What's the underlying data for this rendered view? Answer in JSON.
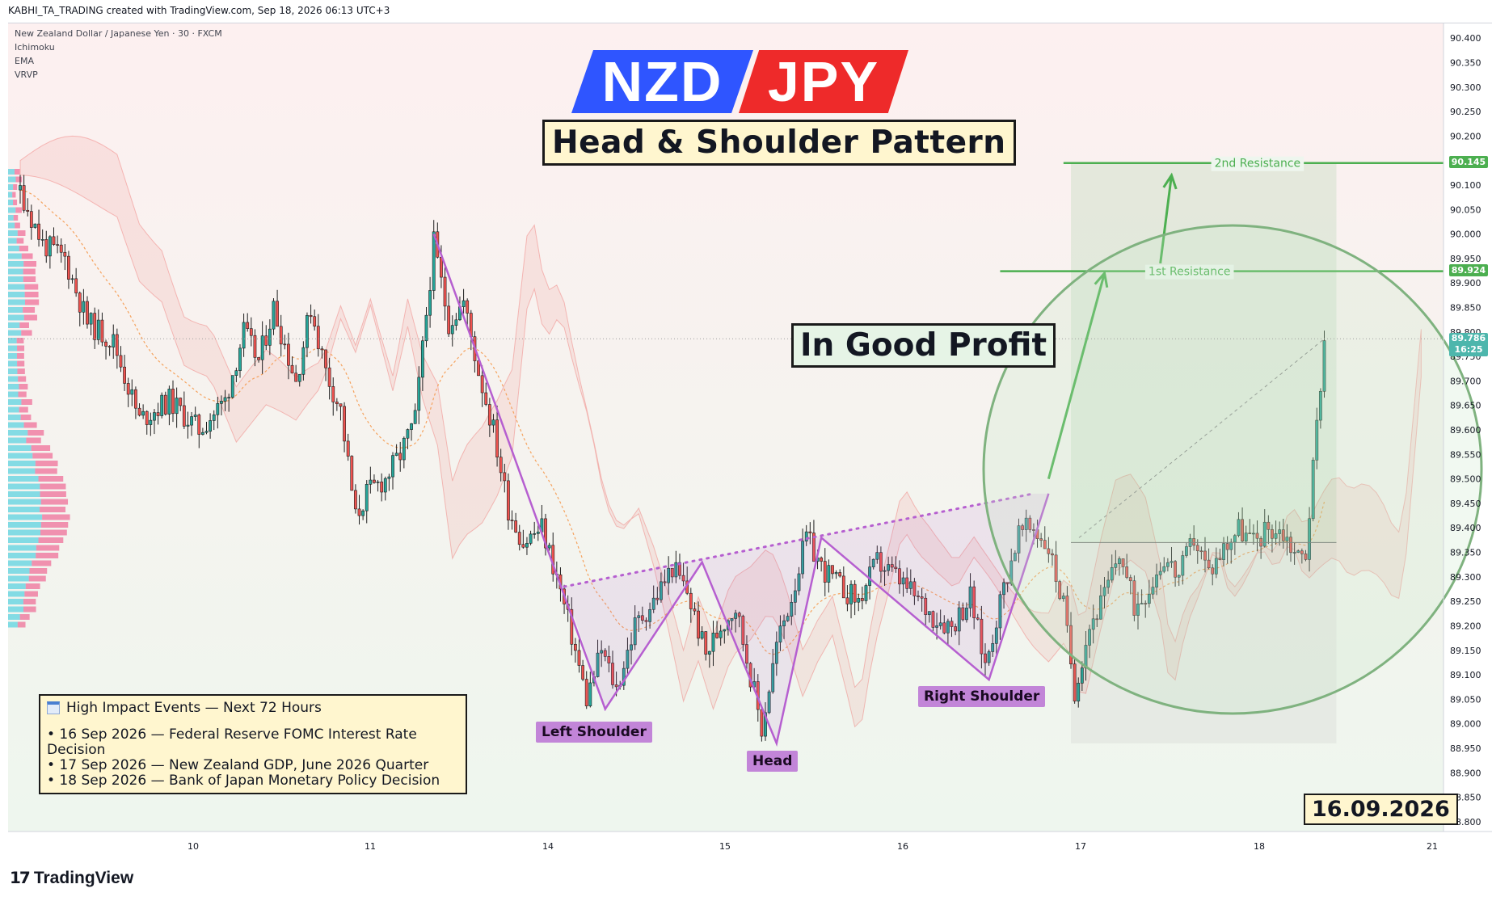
{
  "header": {
    "attribution": "KABHI_TA_TRADING created with TradingView.com, Sep 18, 2026 06:13 UTC+3"
  },
  "legend": {
    "symbol": "New Zealand Dollar / Japanese Yen · 30 · FXCM",
    "indicators": [
      "Ichimoku",
      "EMA",
      "VRVP"
    ]
  },
  "title": {
    "base": "NZD",
    "quote": "JPY",
    "slash": "/",
    "pattern": "Head & Shoulder Pattern"
  },
  "annotations": {
    "profit": "In Good Profit",
    "date": "16.09.2026",
    "labels": {
      "left_shoulder": "Left Shoulder",
      "head": "Head",
      "right_shoulder": "Right Shoulder"
    },
    "resistance_1": {
      "label": "1st Resistance",
      "price": "89.924"
    },
    "resistance_2": {
      "label": "2nd Resistance",
      "price": "90.145"
    },
    "current_price": {
      "price": "89.786",
      "countdown": "16:25"
    }
  },
  "events": {
    "title": "High Impact Events — Next 72 Hours",
    "items": [
      "• 16 Sep 2026 — Federal Reserve FOMC Interest Rate Decision",
      "• 17 Sep 2026 — New Zealand GDP, June 2026 Quarter",
      "• 18 Sep 2026 — Bank of Japan Monetary Policy Decision"
    ]
  },
  "footer": {
    "brand": "TradingView"
  },
  "colors": {
    "bull": "#26a69a",
    "bear": "#ef5350",
    "pattern": "#b65fd0",
    "resistance": "#4caf50",
    "base_bg": "#2f55ff",
    "quote_bg": "#ee2a2a"
  },
  "chart_data": {
    "type": "candlestick",
    "symbol": "NZDJPY",
    "timeframe": "30",
    "y_ticks": [
      "90.400",
      "90.350",
      "90.300",
      "90.250",
      "90.200",
      "90.150",
      "90.100",
      "90.050",
      "90.000",
      "89.950",
      "89.900",
      "89.850",
      "89.800",
      "89.750",
      "89.700",
      "89.650",
      "89.600",
      "89.550",
      "89.500",
      "89.450",
      "89.400",
      "89.350",
      "89.300",
      "89.250",
      "89.200",
      "89.150",
      "89.100",
      "89.050",
      "89.000",
      "88.950",
      "88.900",
      "88.850",
      "88.800"
    ],
    "ylim": [
      88.78,
      90.43
    ],
    "x_ticks": [
      "10",
      "11",
      "14",
      "15",
      "16",
      "17",
      "18",
      "21"
    ],
    "close_path": [
      [
        0,
        90.09
      ],
      [
        6,
        89.98
      ],
      [
        12,
        89.95
      ],
      [
        18,
        89.82
      ],
      [
        25,
        89.78
      ],
      [
        32,
        89.62
      ],
      [
        40,
        89.66
      ],
      [
        48,
        89.6
      ],
      [
        55,
        89.66
      ],
      [
        60,
        89.8
      ],
      [
        64,
        89.74
      ],
      [
        68,
        89.85
      ],
      [
        74,
        89.7
      ],
      [
        78,
        89.85
      ],
      [
        82,
        89.72
      ],
      [
        86,
        89.64
      ],
      [
        90,
        89.42
      ],
      [
        93,
        89.47
      ],
      [
        98,
        89.5
      ],
      [
        102,
        89.55
      ],
      [
        106,
        89.62
      ],
      [
        111,
        89.98
      ],
      [
        115,
        89.82
      ],
      [
        119,
        89.86
      ],
      [
        123,
        89.72
      ],
      [
        127,
        89.6
      ],
      [
        131,
        89.44
      ],
      [
        135,
        89.37
      ],
      [
        140,
        89.4
      ],
      [
        144,
        89.3
      ],
      [
        148,
        89.18
      ],
      [
        152,
        89.05
      ],
      [
        156,
        89.15
      ],
      [
        160,
        89.07
      ],
      [
        165,
        89.2
      ],
      [
        170,
        89.25
      ],
      [
        175,
        89.32
      ],
      [
        179,
        89.27
      ],
      [
        184,
        89.14
      ],
      [
        188,
        89.2
      ],
      [
        192,
        89.24
      ],
      [
        196,
        89.1
      ],
      [
        199,
        88.99
      ],
      [
        203,
        89.16
      ],
      [
        207,
        89.26
      ],
      [
        211,
        89.38
      ],
      [
        215,
        89.32
      ],
      [
        220,
        89.28
      ],
      [
        225,
        89.25
      ],
      [
        230,
        89.33
      ],
      [
        235,
        89.3
      ],
      [
        240,
        89.26
      ],
      [
        245,
        89.22
      ],
      [
        250,
        89.2
      ],
      [
        255,
        89.26
      ],
      [
        259,
        89.12
      ],
      [
        264,
        89.28
      ],
      [
        268,
        89.39
      ],
      [
        272,
        89.4
      ],
      [
        276,
        89.36
      ],
      [
        280,
        89.24
      ],
      [
        283,
        89.07
      ],
      [
        287,
        89.2
      ],
      [
        291,
        89.26
      ],
      [
        295,
        89.35
      ],
      [
        299,
        89.24
      ],
      [
        303,
        89.28
      ],
      [
        307,
        89.34
      ],
      [
        311,
        89.3
      ],
      [
        315,
        89.38
      ],
      [
        319,
        89.31
      ],
      [
        323,
        89.36
      ],
      [
        327,
        89.4
      ],
      [
        331,
        89.37
      ],
      [
        335,
        89.4
      ],
      [
        339,
        89.39
      ],
      [
        343,
        89.34
      ],
      [
        345,
        89.35
      ],
      [
        347,
        89.52
      ],
      [
        349,
        89.7
      ],
      [
        350,
        89.786
      ]
    ],
    "pattern_points": [
      {
        "name": "start",
        "x": 111,
        "y": 90.0
      },
      {
        "name": "left_shoulder",
        "x": 157,
        "y": 89.03
      },
      {
        "name": "neck_1",
        "x": 183,
        "y": 89.33
      },
      {
        "name": "head",
        "x": 203,
        "y": 88.96
      },
      {
        "name": "neck_2",
        "x": 215,
        "y": 89.38
      },
      {
        "name": "right_shoulder",
        "x": 260,
        "y": 89.09
      },
      {
        "name": "breakout",
        "x": 276,
        "y": 89.47
      }
    ],
    "neckline": [
      [
        146,
        89.28
      ],
      [
        272,
        89.47
      ]
    ],
    "resistance_levels": [
      89.924,
      90.145
    ],
    "projection_arrows": [
      [
        [
          276,
          89.5
        ],
        [
          291,
          89.92
        ]
      ],
      [
        [
          306,
          89.94
        ],
        [
          309,
          90.12
        ]
      ]
    ],
    "entry_price": 89.37,
    "last_price": 89.786
  }
}
